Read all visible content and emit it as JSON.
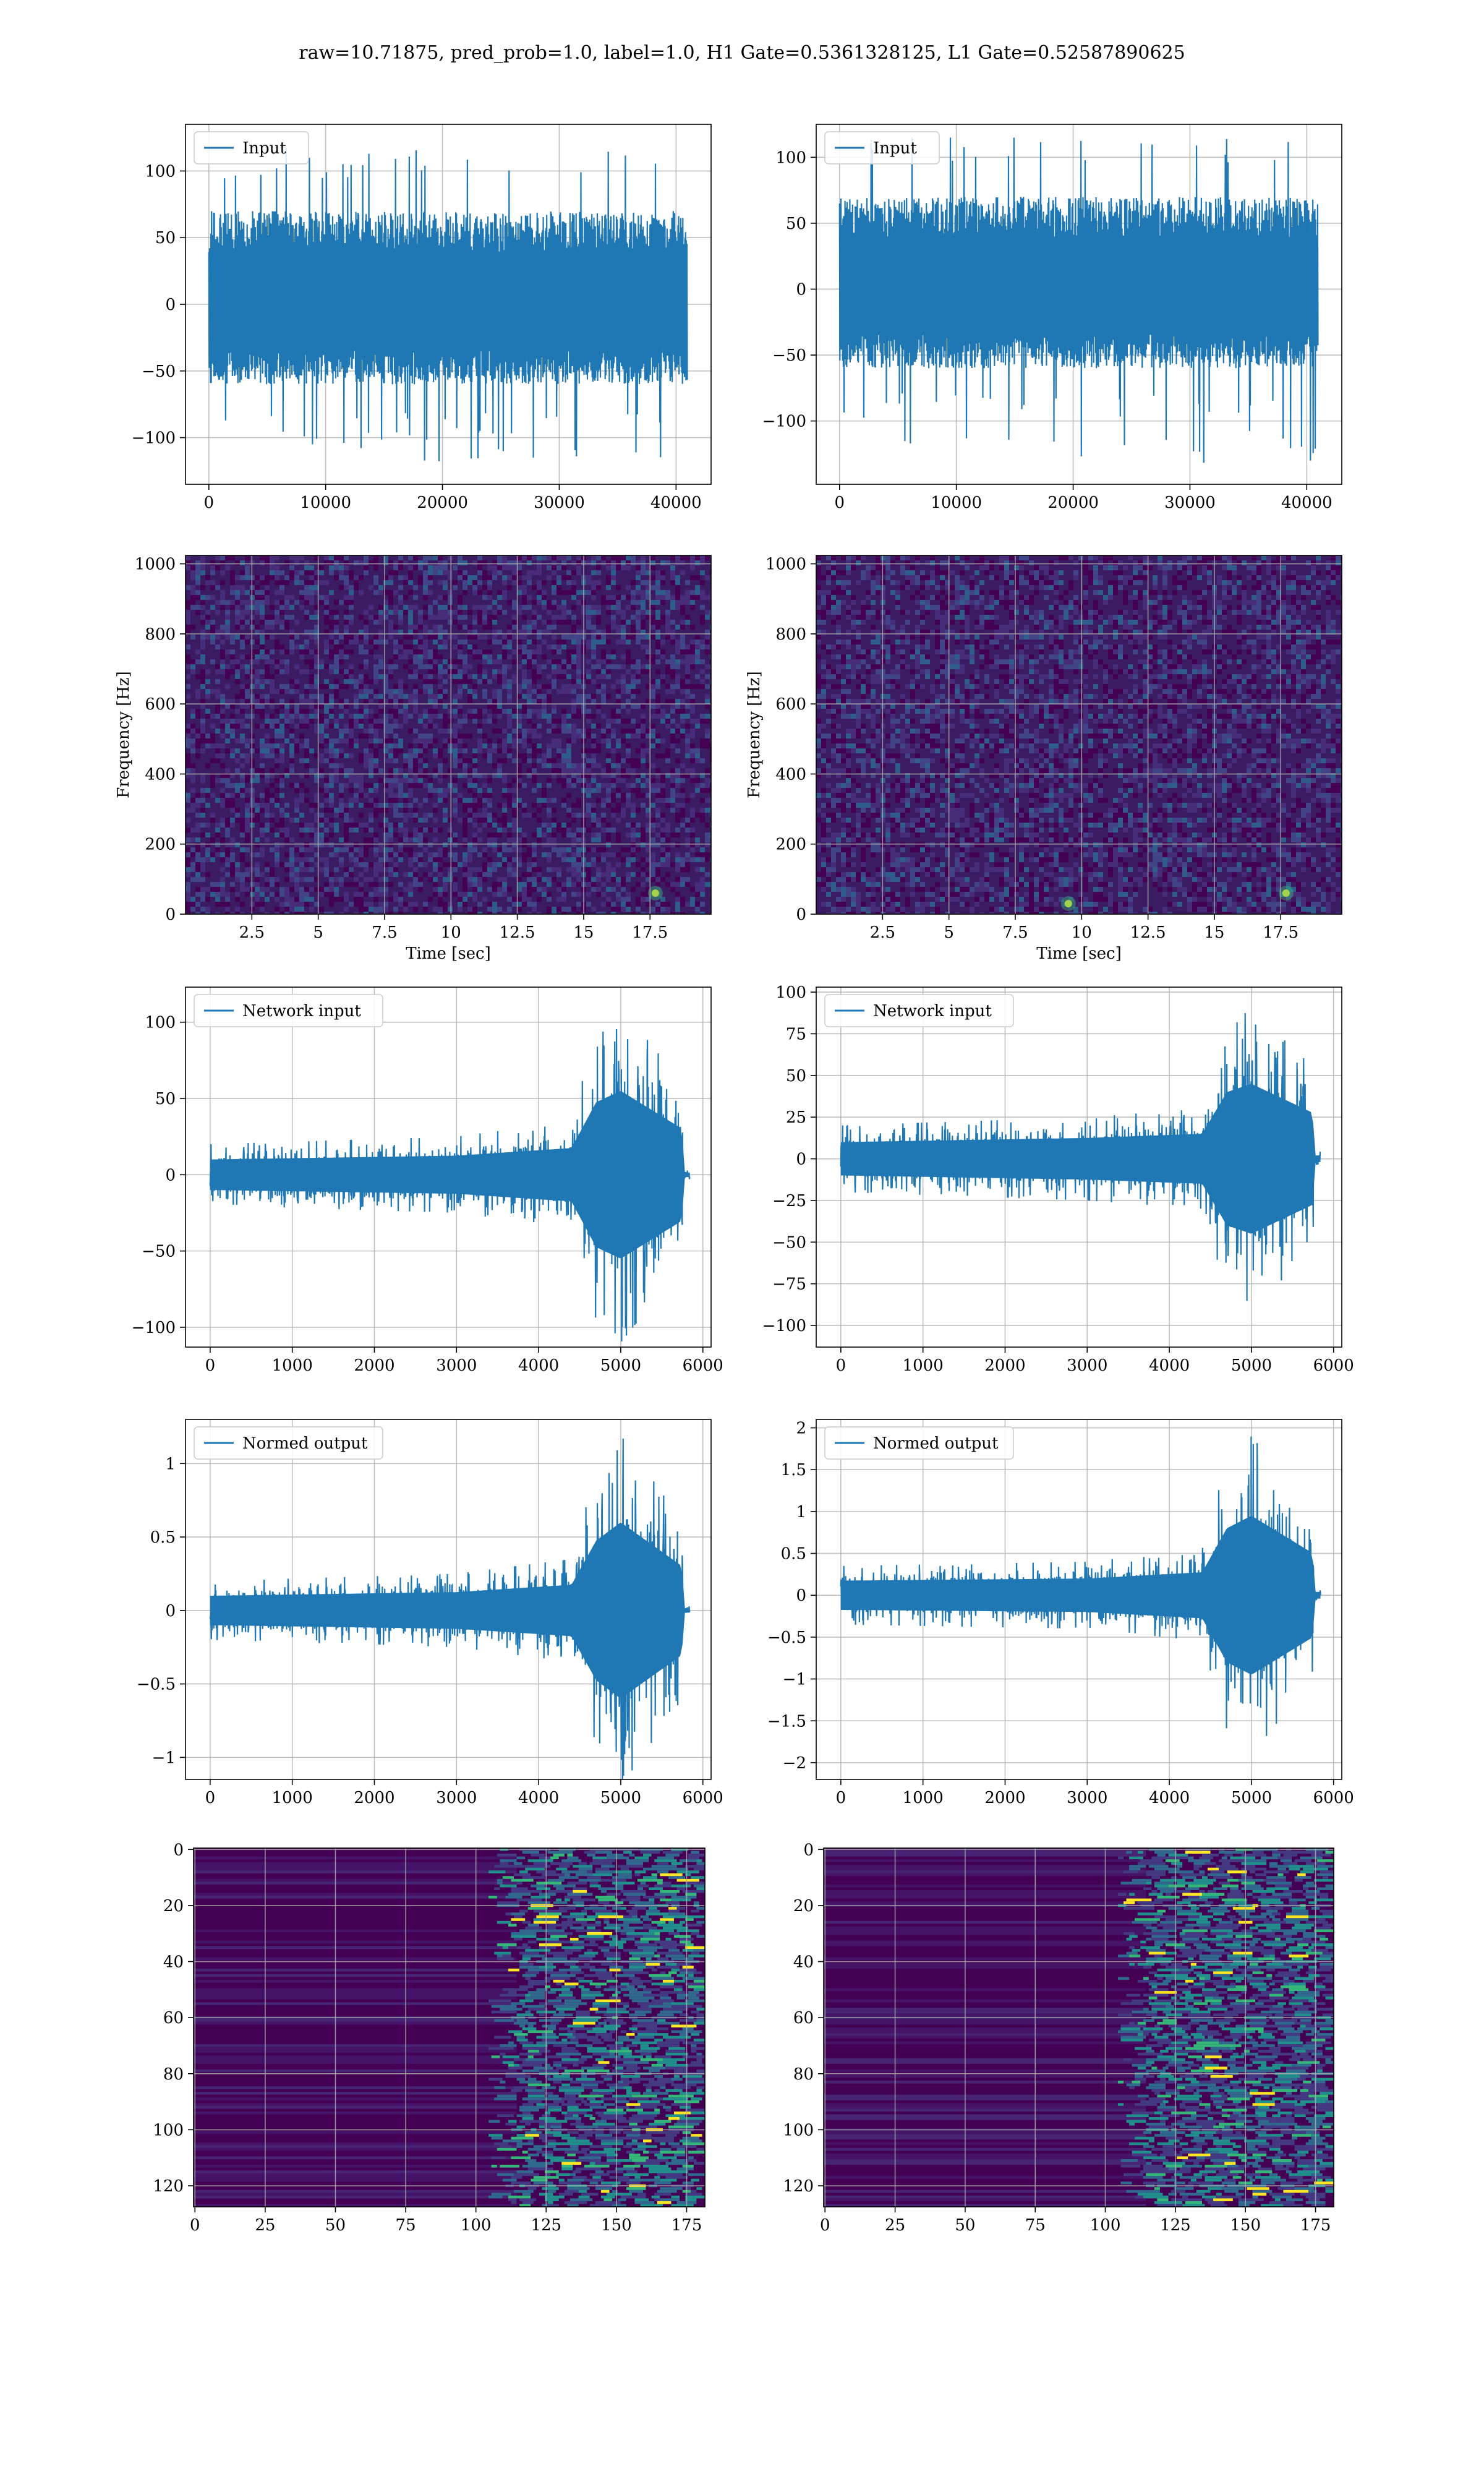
{
  "suptitle": "raw=10.71875, pred_prob=1.0, label=1.0, H1 Gate=0.5361328125, L1 Gate=0.52587890625",
  "colors": {
    "line": "#1f77b4",
    "grid": "#b0b0b0",
    "viridis_dark": "#440154",
    "viridis_mid": "#21908d",
    "viridis_bright": "#fde725"
  },
  "chart_data": [
    {
      "id": "input-h1",
      "type": "line",
      "legend": "Input",
      "legend_placement": "upper-left",
      "grid": true,
      "xlim": [
        -2000,
        43000
      ],
      "ylim": [
        -135,
        135
      ],
      "xticks": [
        0,
        10000,
        20000,
        30000,
        40000
      ],
      "yticks": [
        -100,
        -50,
        0,
        50,
        100
      ],
      "x_range": [
        0,
        40960
      ],
      "envelope_typical": [
        -60,
        70
      ],
      "extremes": [
        -118,
        118
      ]
    },
    {
      "id": "input-l1",
      "type": "line",
      "legend": "Input",
      "legend_placement": "upper-left",
      "grid": true,
      "xlim": [
        -2000,
        43000
      ],
      "ylim": [
        -148,
        125
      ],
      "xticks": [
        0,
        10000,
        20000,
        30000,
        40000
      ],
      "yticks": [
        -100,
        -50,
        0,
        50,
        100
      ],
      "x_range": [
        0,
        40960
      ],
      "envelope_typical": [
        -60,
        70
      ],
      "extremes": [
        -133,
        115
      ]
    },
    {
      "id": "spectrogram-h1",
      "type": "heatmap",
      "grid": true,
      "xlabel": "Time [sec]",
      "ylabel": "Frequency [Hz]",
      "xlim": [
        0,
        19.8
      ],
      "ylim": [
        0,
        1024
      ],
      "xticks": [
        2.5,
        5.0,
        7.5,
        10.0,
        12.5,
        15.0,
        17.5
      ],
      "yticks": [
        0,
        200,
        400,
        600,
        800,
        1000
      ],
      "hotspots": [
        {
          "t": 17.7,
          "f": 60
        }
      ]
    },
    {
      "id": "spectrogram-l1",
      "type": "heatmap",
      "grid": true,
      "xlabel": "Time [sec]",
      "ylabel": "Frequency [Hz]",
      "xlim": [
        0,
        19.8
      ],
      "ylim": [
        0,
        1024
      ],
      "xticks": [
        2.5,
        5.0,
        7.5,
        10.0,
        12.5,
        15.0,
        17.5
      ],
      "yticks": [
        0,
        200,
        400,
        600,
        800,
        1000
      ],
      "hotspots": [
        {
          "t": 9.5,
          "f": 30
        },
        {
          "t": 17.7,
          "f": 60
        }
      ]
    },
    {
      "id": "network-input-h1",
      "type": "line",
      "legend": "Network input",
      "legend_placement": "upper-left",
      "grid": true,
      "xlim": [
        -300,
        6100
      ],
      "ylim": [
        -113,
        123
      ],
      "xticks": [
        0,
        1000,
        2000,
        3000,
        4000,
        5000,
        6000
      ],
      "yticks": [
        -100,
        -50,
        0,
        50,
        100
      ],
      "x_range": [
        0,
        5840
      ],
      "envelope": [
        [
          0,
          20
        ],
        [
          3000,
          25
        ],
        [
          4400,
          35
        ],
        [
          4700,
          95
        ],
        [
          5000,
          110
        ],
        [
          5750,
          60
        ],
        [
          5760,
          3
        ],
        [
          5840,
          3
        ]
      ],
      "x_end_signal": 5750
    },
    {
      "id": "network-input-l1",
      "type": "line",
      "legend": "Network input",
      "legend_placement": "upper-left",
      "grid": true,
      "xlim": [
        -300,
        6100
      ],
      "ylim": [
        -113,
        103
      ],
      "xticks": [
        0,
        1000,
        2000,
        3000,
        4000,
        5000,
        6000
      ],
      "yticks": [
        -100,
        -75,
        -50,
        -25,
        0,
        25,
        50,
        75,
        100
      ],
      "x_range": [
        0,
        5840
      ],
      "envelope": [
        [
          0,
          20
        ],
        [
          3000,
          25
        ],
        [
          4400,
          30
        ],
        [
          4700,
          80
        ],
        [
          5000,
          90
        ],
        [
          5750,
          55
        ],
        [
          5760,
          4
        ],
        [
          5840,
          4
        ]
      ],
      "x_end_signal": 5750
    },
    {
      "id": "normed-output-h1",
      "type": "line",
      "legend": "Normed output",
      "legend_placement": "upper-left",
      "grid": true,
      "xlim": [
        -300,
        6100
      ],
      "ylim": [
        -1.15,
        1.3
      ],
      "xticks": [
        0,
        1000,
        2000,
        3000,
        4000,
        5000,
        6000
      ],
      "yticks": [
        -1.0,
        -0.5,
        0.0,
        0.5,
        1.0
      ],
      "x_range": [
        0,
        5840
      ],
      "envelope": [
        [
          0,
          0.2
        ],
        [
          3000,
          0.25
        ],
        [
          4400,
          0.35
        ],
        [
          4700,
          0.95
        ],
        [
          5000,
          1.2
        ],
        [
          5750,
          0.6
        ],
        [
          5760,
          0.03
        ],
        [
          5840,
          0.03
        ]
      ],
      "x_end_signal": 5750
    },
    {
      "id": "normed-output-l1",
      "type": "line",
      "legend": "Normed output",
      "legend_placement": "upper-left",
      "grid": true,
      "xlim": [
        -300,
        6100
      ],
      "ylim": [
        -2.2,
        2.1
      ],
      "xticks": [
        0,
        1000,
        2000,
        3000,
        4000,
        5000,
        6000
      ],
      "yticks": [
        -2.0,
        -1.5,
        -1.0,
        -0.5,
        0.0,
        0.5,
        1.0,
        1.5,
        2.0
      ],
      "x_range": [
        0,
        5840
      ],
      "envelope": [
        [
          0,
          0.35
        ],
        [
          3000,
          0.4
        ],
        [
          4400,
          0.55
        ],
        [
          4700,
          1.6
        ],
        [
          5000,
          1.9
        ],
        [
          5750,
          1.0
        ],
        [
          5760,
          0.08
        ],
        [
          5840,
          0.08
        ]
      ],
      "x_end_signal": 5750
    },
    {
      "id": "feature-map-h1",
      "type": "heatmap",
      "grid": true,
      "y_inverted": true,
      "xlim": [
        -0.5,
        181.5
      ],
      "ylim": [
        127.5,
        -0.5
      ],
      "xticks": [
        0,
        25,
        50,
        75,
        100,
        125,
        150,
        175
      ],
      "yticks": [
        0,
        20,
        40,
        60,
        80,
        100,
        120
      ]
    },
    {
      "id": "feature-map-l1",
      "type": "heatmap",
      "grid": true,
      "y_inverted": true,
      "xlim": [
        -0.5,
        181.5
      ],
      "ylim": [
        127.5,
        -0.5
      ],
      "xticks": [
        0,
        25,
        50,
        75,
        100,
        125,
        150,
        175
      ],
      "yticks": [
        0,
        20,
        40,
        60,
        80,
        100,
        120
      ]
    }
  ]
}
